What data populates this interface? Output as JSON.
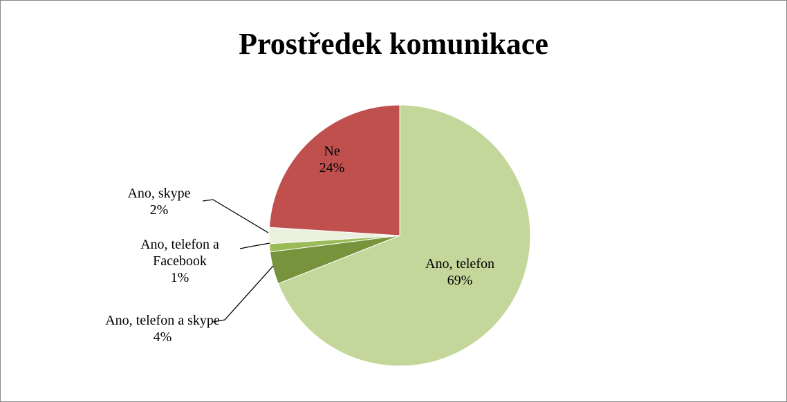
{
  "chart_data": {
    "type": "pie",
    "title": "Prostředek komunikace",
    "categories": [
      "Ano, telefon",
      "Ano, telefon a skype",
      "Ano, telefon a Facebook",
      "Ano, skype",
      "Ne"
    ],
    "values": [
      69,
      4,
      1,
      2,
      24
    ],
    "value_labels": [
      "69%",
      "4%",
      "1%",
      "2%",
      "24%"
    ],
    "colors": [
      "#c4d79b",
      "#77933c",
      "#9bbb59",
      "#ebf1de",
      "#c0504d"
    ]
  }
}
